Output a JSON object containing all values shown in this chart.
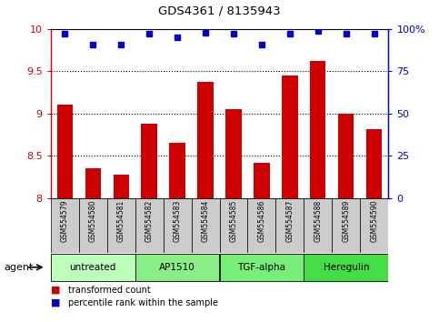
{
  "title": "GDS4361 / 8135943",
  "samples": [
    "GSM554579",
    "GSM554580",
    "GSM554581",
    "GSM554582",
    "GSM554583",
    "GSM554584",
    "GSM554585",
    "GSM554586",
    "GSM554587",
    "GSM554588",
    "GSM554589",
    "GSM554590"
  ],
  "bar_values": [
    9.1,
    8.35,
    8.28,
    8.88,
    8.65,
    9.37,
    9.05,
    8.42,
    9.45,
    9.62,
    9.0,
    8.82
  ],
  "percentile_values": [
    97,
    91,
    91,
    97,
    95,
    98,
    97,
    91,
    97,
    99,
    97,
    97
  ],
  "bar_color": "#cc0000",
  "dot_color": "#0000cc",
  "ylim_left": [
    8,
    10
  ],
  "ylim_right": [
    0,
    100
  ],
  "yticks_left": [
    8,
    8.5,
    9,
    9.5,
    10
  ],
  "ytick_labels_left": [
    "8",
    "8.5",
    "9",
    "9.5",
    "10"
  ],
  "yticks_right": [
    0,
    25,
    50,
    75,
    100
  ],
  "ytick_labels_right": [
    "0",
    "25",
    "50",
    "75",
    "100%"
  ],
  "groups": [
    {
      "label": "untreated",
      "start": 0,
      "end": 2,
      "color": "#bbffbb"
    },
    {
      "label": "AP1510",
      "start": 3,
      "end": 5,
      "color": "#88ee88"
    },
    {
      "label": "TGF-alpha",
      "start": 6,
      "end": 8,
      "color": "#77ee77"
    },
    {
      "label": "Heregulin",
      "start": 9,
      "end": 11,
      "color": "#44dd44"
    }
  ],
  "legend_items": [
    {
      "label": "transformed count",
      "color": "#cc0000"
    },
    {
      "label": "percentile rank within the sample",
      "color": "#0000cc"
    }
  ],
  "agent_label": "agent",
  "bar_width": 0.55,
  "background_color": "#ffffff",
  "tick_label_color": "#cccccc",
  "plot_border_color": "#000000"
}
